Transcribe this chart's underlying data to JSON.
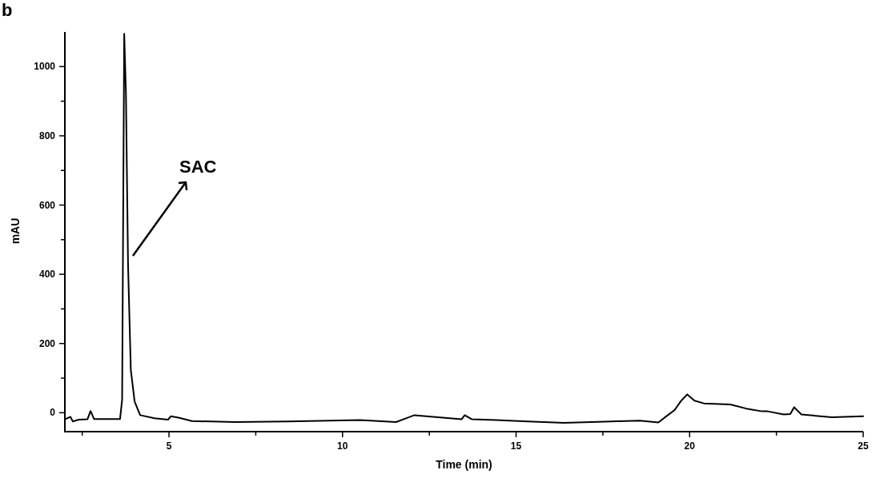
{
  "chart_data": {
    "type": "line",
    "xlabel": "Time (min)",
    "ylabel": "mAU",
    "annotations": [
      "b",
      "SAC"
    ],
    "xlim": [
      2,
      25
    ],
    "ylim": [
      -50,
      1100
    ],
    "xticks": [
      {
        "value": 2.5,
        "label": null
      },
      5,
      {
        "value": 7.5,
        "label": null
      },
      10,
      {
        "value": 12.5,
        "label": null
      },
      15,
      {
        "value": 17.5,
        "label": null
      },
      20,
      {
        "value": 22.5,
        "label": null
      },
      25
    ],
    "yticks": [
      0,
      {
        "value": 100,
        "label": null
      },
      200,
      {
        "value": 300,
        "label": null
      },
      400,
      {
        "value": 500,
        "label": null
      },
      600,
      {
        "value": 700,
        "label": null
      },
      800,
      {
        "value": 900,
        "label": null
      },
      1000
    ],
    "grid": false,
    "marker": "none",
    "line_style": "solid",
    "series": [
      {
        "color": "#000000",
        "x": [
          2.02,
          2.16,
          2.23,
          2.4,
          2.65,
          2.74,
          2.84,
          3.0,
          3.59,
          3.65,
          3.71,
          3.76,
          3.82,
          3.9,
          4.01,
          4.17,
          4.58,
          4.97,
          5.06,
          5.3,
          5.66,
          6.9,
          8.43,
          10.5,
          11.54,
          12.07,
          13.43,
          13.52,
          13.73,
          14.42,
          15.34,
          16.38,
          18.57,
          19.1,
          19.37,
          19.56,
          19.76,
          19.93,
          20.14,
          20.41,
          21.17,
          21.63,
          22.09,
          22.25,
          22.71,
          22.9,
          23.01,
          23.22,
          24.1,
          25.0
        ],
        "values": [
          -18,
          -12,
          -25,
          -20,
          -19,
          5,
          -18,
          -18,
          -18,
          38,
          1095,
          922,
          431,
          124,
          32,
          -7,
          -16,
          -20,
          -10,
          -15,
          -24,
          -27,
          -25,
          -21,
          -27,
          -7,
          -19,
          -7,
          -19,
          -21,
          -25,
          -29,
          -23,
          -28,
          -7,
          7,
          35,
          53,
          35,
          27,
          24,
          12,
          4,
          4,
          -5,
          -4,
          16,
          -5,
          -13,
          -10
        ]
      }
    ]
  }
}
